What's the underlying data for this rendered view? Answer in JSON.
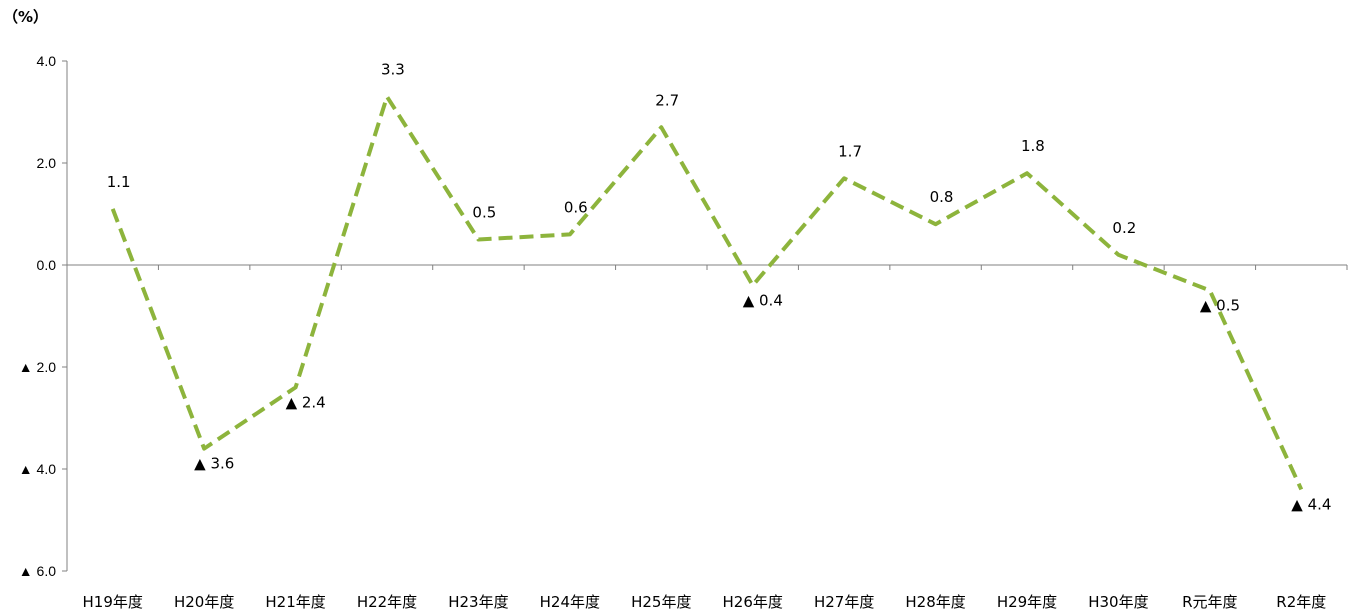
{
  "chart_data": {
    "type": "line",
    "unit_label": "（%）",
    "categories": [
      "H19年度",
      "H20年度",
      "H21年度",
      "H22年度",
      "H23年度",
      "H24年度",
      "H25年度",
      "H26年度",
      "H27年度",
      "H28年度",
      "H29年度",
      "H30年度",
      "R元年度",
      "R2年度"
    ],
    "series": [
      {
        "values": [
          1.1,
          -3.6,
          -2.4,
          3.3,
          0.5,
          0.6,
          2.7,
          -0.4,
          1.7,
          0.8,
          1.8,
          0.2,
          -0.5,
          -4.4
        ]
      }
    ],
    "data_labels": [
      "1.1",
      "▲ 3.6",
      "▲ 2.4",
      "3.3",
      "0.5",
      "0.6",
      "2.7",
      "▲ 0.4",
      "1.7",
      "0.8",
      "1.8",
      "0.2",
      "▲ 0.5",
      "▲ 4.4"
    ],
    "y_ticks": [
      {
        "value": 4,
        "label": "4.0"
      },
      {
        "value": 2,
        "label": "2.0"
      },
      {
        "value": 0,
        "label": "0.0"
      },
      {
        "value": -2,
        "label": "▲ 2.0"
      },
      {
        "value": -4,
        "label": "▲ 4.0"
      },
      {
        "value": -6,
        "label": "▲ 6.0"
      }
    ],
    "ylim": [
      -6,
      4
    ],
    "grid": false,
    "line_color": "#8DB43C",
    "line_style": "dashed"
  }
}
